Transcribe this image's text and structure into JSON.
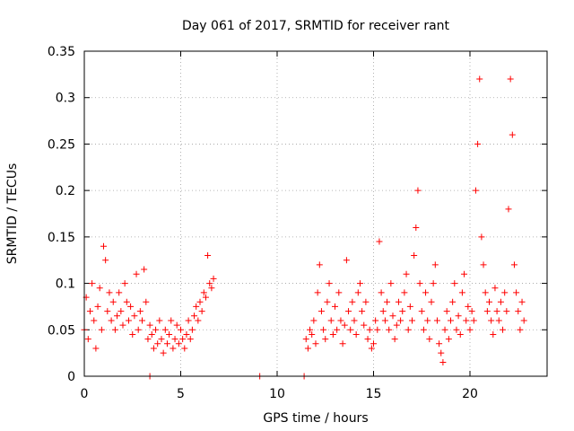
{
  "chart_data": {
    "type": "scatter",
    "title": "Day 061 of 2017, SRMTID for receiver rant",
    "xlabel": "GPS time / hours",
    "ylabel": "SRMTID / TECUs",
    "xlim": [
      0,
      24
    ],
    "ylim": [
      0,
      0.35
    ],
    "x_ticks": [
      0,
      5,
      10,
      15,
      20
    ],
    "x_tick_labels": [
      "0",
      "5",
      "10",
      "15",
      "20"
    ],
    "y_ticks": [
      0,
      0.05,
      0.1,
      0.15,
      0.2,
      0.25,
      0.3,
      0.35
    ],
    "y_tick_labels": [
      "0",
      "0.05",
      "0.1",
      "0.15",
      "0.2",
      "0.25",
      "0.3",
      "0.35"
    ],
    "grid": true,
    "marker": "plus",
    "color": "#ff0000",
    "series": [
      {
        "name": "SRMTID",
        "points": [
          [
            0.0,
            0.05
          ],
          [
            0.1,
            0.085
          ],
          [
            0.2,
            0.04
          ],
          [
            0.3,
            0.07
          ],
          [
            0.4,
            0.1
          ],
          [
            0.5,
            0.06
          ],
          [
            0.6,
            0.03
          ],
          [
            0.7,
            0.075
          ],
          [
            0.8,
            0.095
          ],
          [
            0.9,
            0.05
          ],
          [
            1.0,
            0.14
          ],
          [
            1.1,
            0.125
          ],
          [
            1.2,
            0.07
          ],
          [
            1.3,
            0.09
          ],
          [
            1.4,
            0.06
          ],
          [
            1.5,
            0.08
          ],
          [
            1.6,
            0.05
          ],
          [
            1.7,
            0.065
          ],
          [
            1.8,
            0.09
          ],
          [
            1.9,
            0.07
          ],
          [
            2.0,
            0.055
          ],
          [
            2.1,
            0.1
          ],
          [
            2.2,
            0.08
          ],
          [
            2.3,
            0.06
          ],
          [
            2.4,
            0.075
          ],
          [
            2.5,
            0.045
          ],
          [
            2.6,
            0.065
          ],
          [
            2.7,
            0.11
          ],
          [
            2.8,
            0.05
          ],
          [
            2.9,
            0.07
          ],
          [
            3.0,
            0.06
          ],
          [
            3.1,
            0.115
          ],
          [
            3.2,
            0.08
          ],
          [
            3.3,
            0.04
          ],
          [
            3.4,
            0.055
          ],
          [
            3.5,
            0.045
          ],
          [
            3.6,
            0.03
          ],
          [
            3.7,
            0.05
          ],
          [
            3.8,
            0.035
          ],
          [
            3.9,
            0.06
          ],
          [
            4.0,
            0.04
          ],
          [
            4.1,
            0.025
          ],
          [
            4.2,
            0.05
          ],
          [
            4.3,
            0.035
          ],
          [
            4.4,
            0.045
          ],
          [
            4.5,
            0.06
          ],
          [
            4.6,
            0.03
          ],
          [
            4.7,
            0.04
          ],
          [
            4.8,
            0.055
          ],
          [
            4.9,
            0.035
          ],
          [
            5.0,
            0.05
          ],
          [
            5.1,
            0.04
          ],
          [
            5.2,
            0.03
          ],
          [
            5.3,
            0.045
          ],
          [
            5.4,
            0.06
          ],
          [
            5.5,
            0.04
          ],
          [
            5.6,
            0.05
          ],
          [
            5.7,
            0.065
          ],
          [
            5.8,
            0.075
          ],
          [
            5.9,
            0.06
          ],
          [
            6.0,
            0.08
          ],
          [
            6.1,
            0.07
          ],
          [
            6.2,
            0.09
          ],
          [
            6.3,
            0.085
          ],
          [
            6.4,
            0.13
          ],
          [
            6.5,
            0.1
          ],
          [
            6.6,
            0.095
          ],
          [
            6.7,
            0.105
          ],
          [
            3.4,
            0.0
          ],
          [
            9.1,
            0.0
          ],
          [
            11.4,
            0.0
          ],
          [
            11.5,
            0.04
          ],
          [
            11.6,
            0.03
          ],
          [
            11.7,
            0.05
          ],
          [
            11.8,
            0.045
          ],
          [
            11.9,
            0.06
          ],
          [
            12.0,
            0.035
          ],
          [
            12.1,
            0.09
          ],
          [
            12.2,
            0.12
          ],
          [
            12.3,
            0.07
          ],
          [
            12.4,
            0.05
          ],
          [
            12.5,
            0.04
          ],
          [
            12.6,
            0.08
          ],
          [
            12.7,
            0.1
          ],
          [
            12.8,
            0.06
          ],
          [
            12.9,
            0.045
          ],
          [
            13.0,
            0.075
          ],
          [
            13.1,
            0.05
          ],
          [
            13.2,
            0.09
          ],
          [
            13.3,
            0.06
          ],
          [
            13.4,
            0.035
          ],
          [
            13.5,
            0.055
          ],
          [
            13.6,
            0.125
          ],
          [
            13.7,
            0.07
          ],
          [
            13.8,
            0.05
          ],
          [
            13.9,
            0.08
          ],
          [
            14.0,
            0.06
          ],
          [
            14.1,
            0.045
          ],
          [
            14.2,
            0.09
          ],
          [
            14.3,
            0.1
          ],
          [
            14.4,
            0.07
          ],
          [
            14.5,
            0.055
          ],
          [
            14.6,
            0.08
          ],
          [
            14.7,
            0.04
          ],
          [
            14.8,
            0.05
          ],
          [
            14.9,
            0.03
          ],
          [
            15.0,
            0.035
          ],
          [
            15.1,
            0.06
          ],
          [
            15.2,
            0.05
          ],
          [
            15.3,
            0.145
          ],
          [
            15.4,
            0.09
          ],
          [
            15.5,
            0.07
          ],
          [
            15.6,
            0.06
          ],
          [
            15.7,
            0.08
          ],
          [
            15.8,
            0.05
          ],
          [
            15.9,
            0.1
          ],
          [
            16.0,
            0.065
          ],
          [
            16.1,
            0.04
          ],
          [
            16.2,
            0.055
          ],
          [
            16.3,
            0.08
          ],
          [
            16.4,
            0.06
          ],
          [
            16.5,
            0.07
          ],
          [
            16.6,
            0.09
          ],
          [
            16.7,
            0.11
          ],
          [
            16.8,
            0.05
          ],
          [
            16.9,
            0.075
          ],
          [
            17.0,
            0.06
          ],
          [
            17.1,
            0.13
          ],
          [
            17.2,
            0.16
          ],
          [
            17.3,
            0.2
          ],
          [
            17.4,
            0.1
          ],
          [
            17.5,
            0.07
          ],
          [
            17.6,
            0.05
          ],
          [
            17.7,
            0.09
          ],
          [
            17.8,
            0.06
          ],
          [
            17.9,
            0.04
          ],
          [
            18.0,
            0.08
          ],
          [
            18.1,
            0.1
          ],
          [
            18.2,
            0.12
          ],
          [
            18.3,
            0.06
          ],
          [
            18.4,
            0.035
          ],
          [
            18.5,
            0.025
          ],
          [
            18.6,
            0.015
          ],
          [
            18.7,
            0.05
          ],
          [
            18.8,
            0.07
          ],
          [
            18.9,
            0.04
          ],
          [
            19.0,
            0.06
          ],
          [
            19.1,
            0.08
          ],
          [
            19.2,
            0.1
          ],
          [
            19.3,
            0.05
          ],
          [
            19.4,
            0.065
          ],
          [
            19.5,
            0.045
          ],
          [
            19.6,
            0.09
          ],
          [
            19.7,
            0.11
          ],
          [
            19.8,
            0.06
          ],
          [
            19.9,
            0.075
          ],
          [
            20.0,
            0.05
          ],
          [
            20.1,
            0.07
          ],
          [
            20.2,
            0.06
          ],
          [
            20.3,
            0.2
          ],
          [
            20.4,
            0.25
          ],
          [
            20.5,
            0.32
          ],
          [
            20.6,
            0.15
          ],
          [
            20.7,
            0.12
          ],
          [
            20.8,
            0.09
          ],
          [
            20.9,
            0.07
          ],
          [
            21.0,
            0.08
          ],
          [
            21.1,
            0.06
          ],
          [
            21.2,
            0.045
          ],
          [
            21.3,
            0.095
          ],
          [
            21.4,
            0.07
          ],
          [
            21.5,
            0.06
          ],
          [
            21.6,
            0.08
          ],
          [
            21.7,
            0.05
          ],
          [
            21.8,
            0.09
          ],
          [
            21.9,
            0.07
          ],
          [
            22.0,
            0.18
          ],
          [
            22.1,
            0.32
          ],
          [
            22.2,
            0.26
          ],
          [
            22.3,
            0.12
          ],
          [
            22.4,
            0.09
          ],
          [
            22.5,
            0.07
          ],
          [
            22.6,
            0.05
          ],
          [
            22.7,
            0.08
          ],
          [
            22.8,
            0.06
          ]
        ]
      }
    ]
  }
}
